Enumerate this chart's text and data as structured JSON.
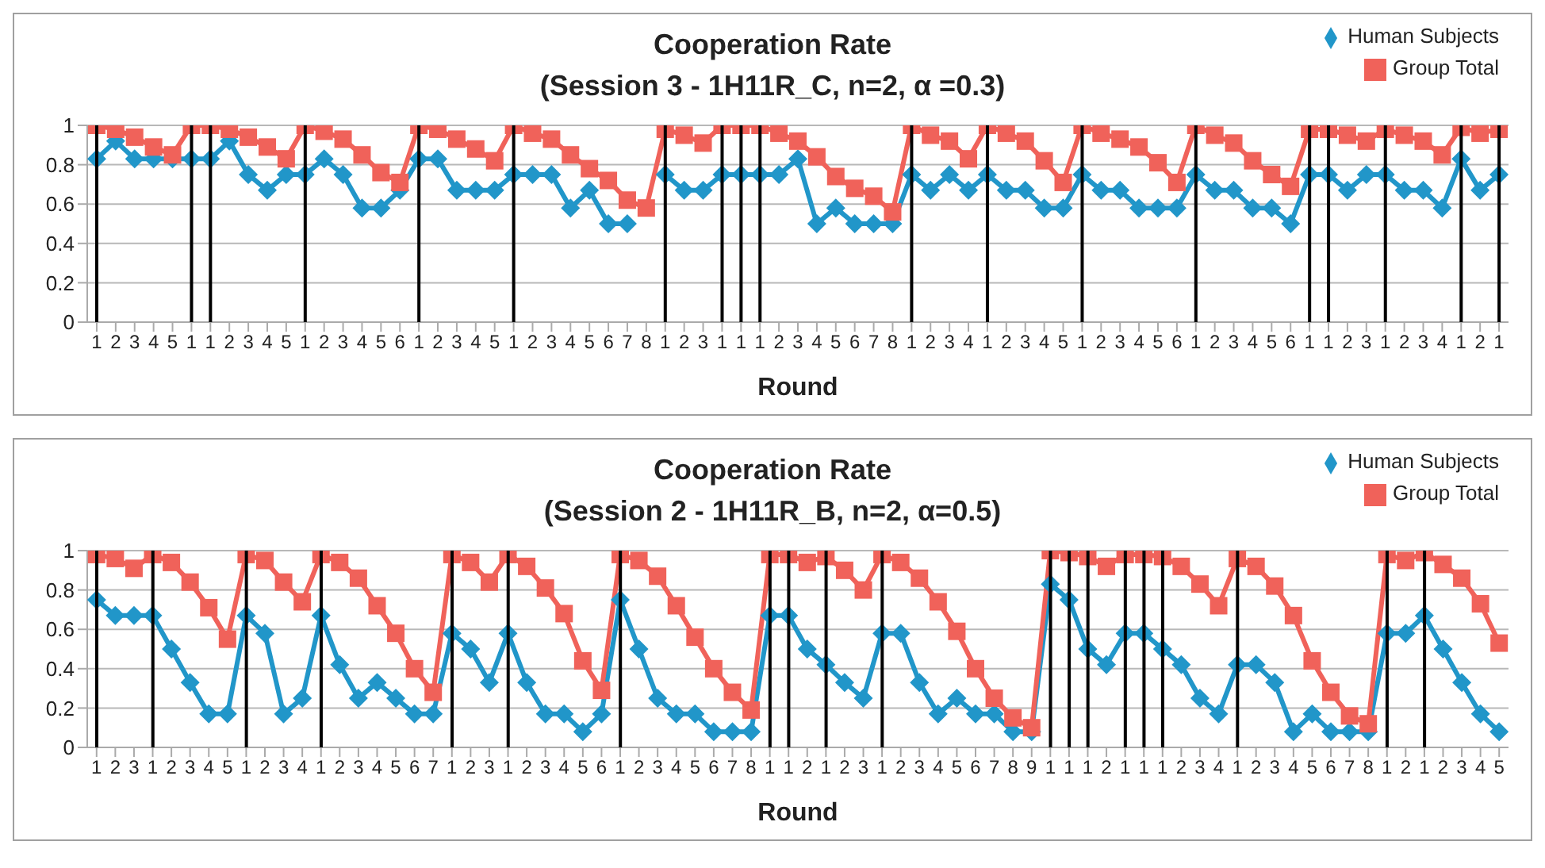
{
  "chart_data": [
    {
      "type": "line",
      "title": "Cooperation Rate",
      "subtitle": "(Session 3 - 1H11R_C, n=2, α =0.3)",
      "xlabel": "Round",
      "ylim": [
        0,
        1
      ],
      "yticks": [
        0,
        0.2,
        0.4,
        0.6,
        0.8,
        1
      ],
      "grid": "y",
      "legend": "top right",
      "categories": [
        "1",
        "2",
        "3",
        "4",
        "5",
        "1",
        "1",
        "2",
        "3",
        "4",
        "5",
        "1",
        "2",
        "3",
        "4",
        "5",
        "6",
        "1",
        "2",
        "3",
        "4",
        "5",
        "1",
        "2",
        "3",
        "4",
        "5",
        "6",
        "7",
        "8",
        "1",
        "2",
        "3",
        "1",
        "1",
        "1",
        "2",
        "3",
        "4",
        "5",
        "6",
        "7",
        "8",
        "1",
        "2",
        "3",
        "4",
        "1",
        "2",
        "3",
        "4",
        "5",
        "1",
        "2",
        "3",
        "4",
        "5",
        "6",
        "1",
        "2",
        "3",
        "4",
        "5",
        "6",
        "1",
        "1",
        "2",
        "3",
        "1",
        "2",
        "3",
        "4",
        "1",
        "2",
        "1"
      ],
      "series": [
        {
          "type": "bar",
          "color": "#000000",
          "values": [
            1,
            null,
            null,
            null,
            null,
            1,
            1,
            null,
            null,
            null,
            null,
            1,
            null,
            null,
            null,
            null,
            null,
            1,
            null,
            null,
            null,
            null,
            1,
            null,
            null,
            null,
            null,
            null,
            null,
            null,
            1,
            null,
            null,
            1,
            1,
            1,
            null,
            null,
            null,
            null,
            null,
            null,
            null,
            1,
            null,
            null,
            null,
            1,
            null,
            null,
            null,
            null,
            1,
            null,
            null,
            null,
            null,
            null,
            1,
            null,
            null,
            null,
            null,
            null,
            1,
            1,
            null,
            null,
            1,
            null,
            null,
            null,
            1,
            null,
            1
          ]
        },
        {
          "name": "Human Subjects",
          "color": "#2196c9",
          "marker": "diamond",
          "values": [
            0.83,
            0.92,
            0.83,
            0.83,
            0.83,
            0.83,
            0.83,
            0.92,
            0.75,
            0.67,
            0.75,
            0.75,
            0.83,
            0.75,
            0.58,
            0.58,
            0.67,
            0.83,
            0.83,
            0.67,
            0.67,
            0.67,
            0.75,
            0.75,
            0.75,
            0.58,
            0.67,
            0.5,
            0.5,
            null,
            0.75,
            0.67,
            0.67,
            0.75,
            0.75,
            0.75,
            0.75,
            0.83,
            0.5,
            0.58,
            0.5,
            0.5,
            0.5,
            0.75,
            0.67,
            0.75,
            0.67,
            0.75,
            0.67,
            0.67,
            0.58,
            0.58,
            0.75,
            0.67,
            0.67,
            0.58,
            0.58,
            0.58,
            0.75,
            0.67,
            0.67,
            0.58,
            0.58,
            0.5,
            0.75,
            0.75,
            0.67,
            0.75,
            0.75,
            0.67,
            0.67,
            0.58,
            0.83,
            0.67,
            0.75
          ]
        },
        {
          "name": "Group Total",
          "color": "#f0625a",
          "marker": "square",
          "values": [
            1,
            0.98,
            0.94,
            0.89,
            0.85,
            1,
            1,
            0.98,
            0.94,
            0.89,
            0.83,
            1,
            0.97,
            0.93,
            0.85,
            0.76,
            0.71,
            1,
            0.98,
            0.93,
            0.88,
            0.82,
            1,
            0.96,
            0.93,
            0.85,
            0.78,
            0.72,
            0.62,
            0.58,
            0.98,
            0.95,
            0.91,
            1,
            1,
            1,
            0.96,
            0.92,
            0.84,
            0.74,
            0.68,
            0.64,
            0.56,
            1,
            0.95,
            0.92,
            0.83,
            1,
            0.96,
            0.92,
            0.82,
            0.71,
            1,
            0.96,
            0.93,
            0.89,
            0.81,
            0.71,
            1,
            0.95,
            0.91,
            0.82,
            0.75,
            0.69,
            0.98,
            0.98,
            0.95,
            0.92,
            0.98,
            0.95,
            0.92,
            0.85,
            0.99,
            0.96,
            0.98
          ]
        }
      ]
    },
    {
      "type": "line",
      "title": "Cooperation Rate",
      "subtitle": "(Session 2 - 1H11R_B, n=2, α=0.5)",
      "xlabel": "Round",
      "ylim": [
        0,
        1
      ],
      "yticks": [
        0,
        0.2,
        0.4,
        0.6,
        0.8,
        1
      ],
      "grid": "y",
      "legend": "top right",
      "categories": [
        "1",
        "2",
        "3",
        "1",
        "2",
        "3",
        "4",
        "5",
        "1",
        "2",
        "3",
        "4",
        "1",
        "2",
        "3",
        "4",
        "5",
        "6",
        "7",
        "1",
        "2",
        "3",
        "1",
        "2",
        "3",
        "4",
        "5",
        "6",
        "1",
        "2",
        "3",
        "4",
        "5",
        "6",
        "7",
        "8",
        "1",
        "1",
        "2",
        "1",
        "2",
        "3",
        "1",
        "2",
        "3",
        "4",
        "5",
        "6",
        "7",
        "8",
        "9",
        "1",
        "1",
        "1",
        "2",
        "1",
        "1",
        "1",
        "2",
        "3",
        "4",
        "1",
        "2",
        "3",
        "4",
        "5",
        "6",
        "7",
        "8",
        "1",
        "2",
        "1",
        "2",
        "3",
        "4",
        "5"
      ],
      "series": [
        {
          "type": "bar",
          "color": "#000000",
          "values": [
            1,
            null,
            null,
            1,
            null,
            null,
            null,
            null,
            1,
            null,
            null,
            null,
            1,
            null,
            null,
            null,
            null,
            null,
            null,
            1,
            null,
            null,
            1,
            null,
            null,
            null,
            null,
            null,
            1,
            null,
            null,
            null,
            null,
            null,
            null,
            null,
            1,
            1,
            null,
            1,
            null,
            null,
            1,
            null,
            null,
            null,
            null,
            null,
            null,
            null,
            null,
            1,
            1,
            1,
            null,
            1,
            1,
            1,
            null,
            null,
            null,
            1,
            null,
            null,
            null,
            null,
            null,
            null,
            null,
            1,
            null,
            1,
            null,
            null,
            null,
            null
          ]
        },
        {
          "name": "Human Subjects",
          "color": "#2196c9",
          "marker": "diamond",
          "values": [
            0.75,
            0.67,
            0.67,
            0.67,
            0.5,
            0.33,
            0.17,
            0.17,
            0.67,
            0.58,
            0.17,
            0.25,
            0.67,
            0.42,
            0.25,
            0.33,
            0.25,
            0.17,
            0.17,
            0.58,
            0.5,
            0.33,
            0.58,
            0.33,
            0.17,
            0.17,
            0.08,
            0.17,
            0.75,
            0.5,
            0.25,
            0.17,
            0.17,
            0.08,
            0.08,
            0.08,
            0.67,
            0.67,
            0.5,
            0.42,
            0.33,
            0.25,
            0.58,
            0.58,
            0.33,
            0.17,
            0.25,
            0.17,
            0.17,
            0.08,
            0.08,
            0.83,
            0.75,
            0.5,
            0.42,
            0.58,
            0.58,
            0.5,
            0.42,
            0.25,
            0.17,
            0.42,
            0.42,
            0.33,
            0.08,
            0.17,
            0.08,
            0.08,
            0.08,
            0.58,
            0.58,
            0.67,
            0.5,
            0.33,
            0.17,
            0.08
          ]
        },
        {
          "name": "Group Total",
          "color": "#f0625a",
          "marker": "square",
          "values": [
            0.98,
            0.96,
            0.91,
            0.98,
            0.94,
            0.84,
            0.71,
            0.55,
            0.98,
            0.95,
            0.84,
            0.74,
            0.98,
            0.94,
            0.86,
            0.72,
            0.58,
            0.4,
            0.28,
            0.98,
            0.94,
            0.84,
            0.98,
            0.92,
            0.81,
            0.68,
            0.44,
            0.29,
            0.98,
            0.95,
            0.87,
            0.72,
            0.56,
            0.4,
            0.28,
            0.19,
            0.98,
            0.98,
            0.94,
            0.97,
            0.9,
            0.8,
            0.98,
            0.94,
            0.86,
            0.74,
            0.59,
            0.4,
            0.25,
            0.15,
            0.1,
            1,
            0.99,
            0.97,
            0.92,
            0.98,
            0.98,
            0.97,
            0.92,
            0.83,
            0.72,
            0.96,
            0.92,
            0.82,
            0.67,
            0.44,
            0.28,
            0.16,
            0.12,
            0.98,
            0.95,
            0.99,
            0.93,
            0.86,
            0.73,
            0.53
          ]
        }
      ]
    }
  ]
}
